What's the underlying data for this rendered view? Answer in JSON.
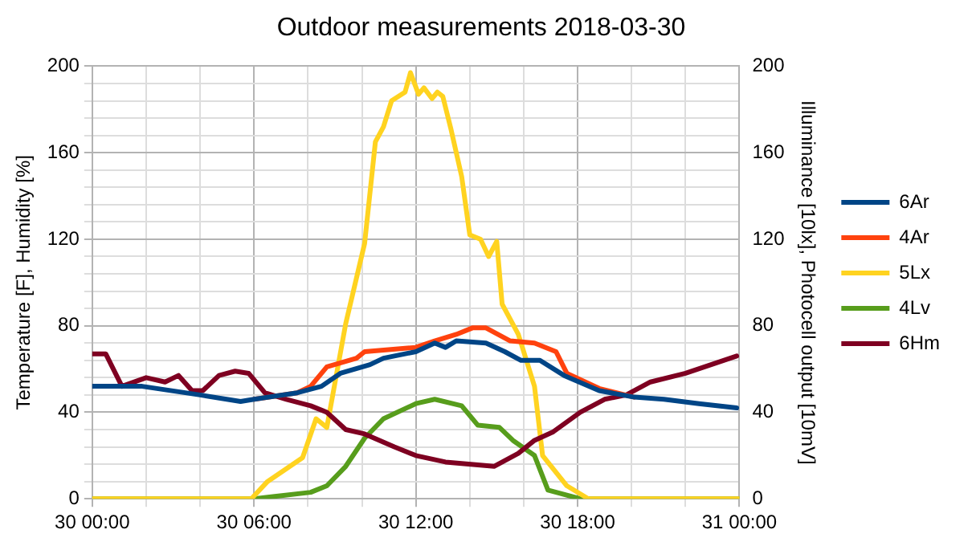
{
  "chart_data": {
    "type": "line",
    "title": "Outdoor measurements 2018-03-30",
    "ylabel": "Temperature [F], Humidity [%]",
    "y2label": "Illuminance [10lx], Photocell output [10mV]",
    "xlim": [
      "2018-03-30T00:00",
      "2018-03-31T00:00"
    ],
    "xticks": [
      {
        "value": "2018-03-30T00:00",
        "label": "30 00:00"
      },
      {
        "value": "2018-03-30T02:00",
        "label": null
      },
      {
        "value": "2018-03-30T04:00",
        "label": null
      },
      {
        "value": "2018-03-30T06:00",
        "label": "30 06:00"
      },
      {
        "value": "2018-03-30T08:00",
        "label": null
      },
      {
        "value": "2018-03-30T10:00",
        "label": null
      },
      {
        "value": "2018-03-30T12:00",
        "label": "30 12:00"
      },
      {
        "value": "2018-03-30T14:00",
        "label": null
      },
      {
        "value": "2018-03-30T16:00",
        "label": null
      },
      {
        "value": "2018-03-30T18:00",
        "label": "30 18:00"
      },
      {
        "value": "2018-03-30T20:00",
        "label": null
      },
      {
        "value": "2018-03-30T22:00",
        "label": null
      },
      {
        "value": "2018-03-31T00:00",
        "label": "31 00:00"
      }
    ],
    "ylim": [
      0,
      200
    ],
    "yticks": [
      0,
      {
        "value": 8,
        "label": null
      },
      {
        "value": 16,
        "label": null
      },
      {
        "value": 24,
        "label": null
      },
      {
        "value": 32,
        "label": null
      },
      40,
      {
        "value": 48,
        "label": null
      },
      {
        "value": 56,
        "label": null
      },
      {
        "value": 64,
        "label": null
      },
      {
        "value": 72,
        "label": null
      },
      80,
      {
        "value": 88,
        "label": null
      },
      {
        "value": 96,
        "label": null
      },
      {
        "value": 104,
        "label": null
      },
      {
        "value": 112,
        "label": null
      },
      120,
      {
        "value": 128,
        "label": null
      },
      {
        "value": 136,
        "label": null
      },
      {
        "value": 144,
        "label": null
      },
      {
        "value": 152,
        "label": null
      },
      160,
      {
        "value": 168,
        "label": null
      },
      {
        "value": 176,
        "label": null
      },
      {
        "value": 184,
        "label": null
      },
      {
        "value": 192,
        "label": null
      },
      200
    ],
    "y2lim": [
      0,
      200
    ],
    "y2ticks": [
      0,
      40,
      80,
      120,
      160,
      200
    ],
    "grid": true,
    "legend": "right",
    "marker": "none",
    "line_style": "solid",
    "series": [
      {
        "name": "6Ar",
        "color": "#004586",
        "x": [
          "2018-03-30T00:00",
          "2018-03-30T01:51",
          "2018-03-30T04:00",
          "2018-03-30T05:30",
          "2018-03-30T06:00",
          "2018-03-30T07:36",
          "2018-03-30T08:30",
          "2018-03-30T09:12",
          "2018-03-30T10:18",
          "2018-03-30T10:48",
          "2018-03-30T12:00",
          "2018-03-30T12:42",
          "2018-03-30T13:06",
          "2018-03-30T13:30",
          "2018-03-30T14:36",
          "2018-03-30T15:18",
          "2018-03-30T15:54",
          "2018-03-30T16:36",
          "2018-03-30T17:30",
          "2018-03-30T18:48",
          "2018-03-30T20:06",
          "2018-03-30T21:12",
          "2018-03-30T22:30",
          "2018-03-30T23:54"
        ],
        "values": [
          52,
          52,
          48,
          45,
          46,
          49,
          52,
          58,
          62,
          65,
          68,
          72,
          70,
          73,
          72,
          68,
          64,
          64,
          57,
          50,
          47,
          46,
          44,
          42
        ]
      },
      {
        "name": "4Ar",
        "color": "#ff420e",
        "x": [
          "2018-03-30T06:00",
          "2018-03-30T07:36",
          "2018-03-30T08:06",
          "2018-03-30T08:42",
          "2018-03-30T09:48",
          "2018-03-30T10:06",
          "2018-03-30T12:00",
          "2018-03-30T12:42",
          "2018-03-30T13:30",
          "2018-03-30T14:06",
          "2018-03-30T14:36",
          "2018-03-30T15:30",
          "2018-03-30T16:24",
          "2018-03-30T17:12",
          "2018-03-30T17:36",
          "2018-03-30T18:48",
          "2018-03-30T20:06"
        ],
        "values": [
          46,
          49,
          52,
          61,
          65,
          68,
          70,
          73,
          76,
          79,
          79,
          73,
          72,
          68,
          58,
          51,
          47
        ]
      },
      {
        "name": "5Lx",
        "color": "#ffd320",
        "axis": "y2",
        "x": [
          "2018-03-30T00:00",
          "2018-03-30T05:54",
          "2018-03-30T06:30",
          "2018-03-30T07:48",
          "2018-03-30T08:18",
          "2018-03-30T08:42",
          "2018-03-30T09:24",
          "2018-03-30T10:06",
          "2018-03-30T10:30",
          "2018-03-30T10:48",
          "2018-03-30T11:06",
          "2018-03-30T11:36",
          "2018-03-30T11:48",
          "2018-03-30T12:06",
          "2018-03-30T12:18",
          "2018-03-30T12:36",
          "2018-03-30T12:48",
          "2018-03-30T13:00",
          "2018-03-30T13:18",
          "2018-03-30T13:42",
          "2018-03-30T14:00",
          "2018-03-30T14:24",
          "2018-03-30T14:42",
          "2018-03-30T15:00",
          "2018-03-30T15:12",
          "2018-03-30T15:48",
          "2018-03-30T16:24",
          "2018-03-30T16:42",
          "2018-03-30T17:36",
          "2018-03-30T18:24",
          "2018-03-31T00:00"
        ],
        "values": [
          0,
          0,
          8,
          19,
          37,
          33,
          81,
          118,
          165,
          172,
          184,
          188,
          197,
          187,
          190,
          185,
          188,
          186,
          171,
          149,
          122,
          120,
          112,
          119,
          90,
          76,
          52,
          20,
          6,
          0,
          0
        ]
      },
      {
        "name": "4Lv",
        "color": "#579d1c",
        "axis": "y2",
        "x": [
          "2018-03-30T00:00",
          "2018-03-30T06:00",
          "2018-03-30T06:42",
          "2018-03-30T08:06",
          "2018-03-30T08:42",
          "2018-03-30T09:24",
          "2018-03-30T10:06",
          "2018-03-30T10:48",
          "2018-03-30T12:00",
          "2018-03-30T12:42",
          "2018-03-30T13:42",
          "2018-03-30T14:18",
          "2018-03-30T15:06",
          "2018-03-30T15:36",
          "2018-03-30T16:24",
          "2018-03-30T16:54",
          "2018-03-30T18:06",
          "2018-03-31T00:00"
        ],
        "values": [
          0,
          0,
          1,
          3,
          6,
          15,
          28,
          37,
          44,
          46,
          43,
          34,
          33,
          27,
          20,
          4,
          0,
          0
        ]
      },
      {
        "name": "6Hm",
        "color": "#7e0021",
        "x": [
          "2018-03-30T00:00",
          "2018-03-30T00:30",
          "2018-03-30T01:06",
          "2018-03-30T02:00",
          "2018-03-30T02:42",
          "2018-03-30T03:12",
          "2018-03-30T03:42",
          "2018-03-30T04:06",
          "2018-03-30T04:42",
          "2018-03-30T05:18",
          "2018-03-30T05:48",
          "2018-03-30T06:24",
          "2018-03-30T07:12",
          "2018-03-30T08:06",
          "2018-03-30T08:42",
          "2018-03-30T09:24",
          "2018-03-30T10:06",
          "2018-03-30T11:12",
          "2018-03-30T12:00",
          "2018-03-30T13:06",
          "2018-03-30T14:54",
          "2018-03-30T15:48",
          "2018-03-30T16:24",
          "2018-03-30T17:06",
          "2018-03-30T18:06",
          "2018-03-30T19:00",
          "2018-03-30T19:48",
          "2018-03-30T20:42",
          "2018-03-30T22:00",
          "2018-03-30T23:54"
        ],
        "values": [
          67,
          67,
          52,
          56,
          54,
          57,
          50,
          50,
          57,
          59,
          58,
          49,
          46,
          43,
          40,
          32,
          30,
          24,
          20,
          17,
          15,
          21,
          27,
          31,
          40,
          46,
          48,
          54,
          58,
          66
        ]
      }
    ]
  }
}
